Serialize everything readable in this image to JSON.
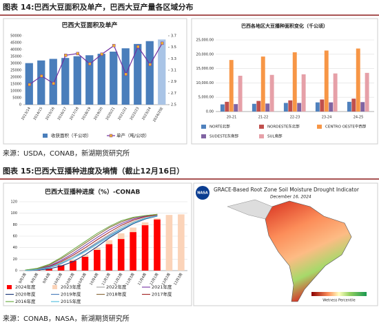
{
  "figure_14": {
    "caption": "图表 14:巴西大豆面积及单产，巴西大豆产量各区域分布",
    "source": "来源：USDA，CONAB，新湖期货研究所"
  },
  "figure_15": {
    "caption": "图表 15:巴西大豆播种进度及墒情（截止12月16日）",
    "source": "来源：CONAB，NASA，新湖期货研究所",
    "map": {
      "logo": "NASA",
      "title": "GRACE-Based Root Zone Soil Moisture Drought Indicator",
      "date": "December 16, 2024",
      "legend_label": "Wetness Percentile"
    }
  },
  "chart_data": [
    {
      "type": "bar_line",
      "title": "巴西大豆面积及单产",
      "bar_mode": "group",
      "categories": [
        "2013/14",
        "2014/15",
        "2015/16",
        "2016/17",
        "2017/18",
        "2018/19",
        "2019/20",
        "2020/21",
        "2021/22",
        "2022/23",
        "2023/24",
        "2024/25E"
      ],
      "series": [
        {
          "name": "收获面积（千公顷）",
          "type": "bar",
          "color": "#4a7ebb",
          "colors": {
            "11": "#a9c4e6"
          },
          "values": [
            30173,
            32093,
            33252,
            33909,
            35149,
            35874,
            36950,
            38502,
            40921,
            44075,
            46134,
            47340
          ]
        },
        {
          "name": "单产（吨/公顷）",
          "type": "line",
          "axis": "y2",
          "color": "#7030a0",
          "marker_color": "#f0b030",
          "values": [
            2.85,
            3.0,
            2.87,
            3.36,
            3.39,
            3.21,
            3.38,
            3.53,
            3.03,
            3.51,
            3.2,
            3.57
          ]
        }
      ],
      "ylim": [
        0,
        50000
      ],
      "yticks": [
        0,
        5000,
        10000,
        15000,
        20000,
        25000,
        30000,
        35000,
        40000,
        45000,
        50000
      ],
      "y2lim": [
        2.5,
        3.7
      ],
      "y2ticks": [
        2.5,
        2.7,
        2.9,
        3.1,
        3.3,
        3.5,
        3.7
      ],
      "grid": false
    },
    {
      "type": "bar",
      "title": "巴西各地区大豆播种面积变化（千公顷）",
      "bar_mode": "group",
      "categories": [
        "20-21",
        "21-22",
        "22-23",
        "23-24",
        "24-25"
      ],
      "series": [
        {
          "name": "NORTE北部",
          "type": "bar",
          "color": "#4f81bd",
          "values": [
            2500,
            2700,
            3000,
            3200,
            3400
          ]
        },
        {
          "name": "NORDESTE东北部",
          "type": "bar",
          "color": "#c0504d",
          "values": [
            3400,
            3700,
            3900,
            4200,
            4500
          ]
        },
        {
          "name": "CENTRO OESTE中西部",
          "type": "bar",
          "color": "#f79646",
          "values": [
            18000,
            19200,
            20700,
            21300,
            22000
          ]
        },
        {
          "name": "SUDESTE东南部",
          "type": "bar",
          "color": "#8064a2",
          "values": [
            2600,
            2800,
            3000,
            3200,
            3300
          ]
        },
        {
          "name": "SUL南部",
          "type": "bar",
          "color": "#e6a0a8",
          "values": [
            12500,
            12800,
            13000,
            13300,
            13500
          ]
        }
      ],
      "ylim": [
        0,
        25000
      ],
      "yticks": [
        {
          "value": 0,
          "label": "0.00"
        },
        {
          "value": 5000,
          "label": "5,000.00"
        },
        {
          "value": 10000,
          "label": "10,000.00"
        },
        {
          "value": 15000,
          "label": "15,000.00"
        },
        {
          "value": 20000,
          "label": "20,000.00"
        },
        {
          "value": 25000,
          "label": "25,000.00"
        }
      ],
      "grid": true
    },
    {
      "type": "bar_line",
      "title": "巴西大豆播种进度（%）-CONAB",
      "bar_mode": "overlap",
      "categories": [
        "9月2周",
        "9月3周",
        "9月4周",
        "10月1周",
        "10月2周",
        "10月3周",
        "10月4周",
        "11月1周",
        "11月2周",
        "11月3周",
        "11月4周",
        "12月1周",
        "12月2周",
        "12月3周"
      ],
      "series": [
        {
          "name": "2024年度",
          "type": "bar",
          "color": "#ff0000",
          "values": [
            0,
            1,
            3,
            9,
            17,
            24,
            36,
            46,
            55,
            67,
            79,
            89,
            null,
            null
          ]
        },
        {
          "name": "2023年度",
          "type": "bar",
          "color": "#fbd3b8",
          "values": [
            0,
            1,
            4,
            10,
            19,
            28,
            40,
            53,
            65,
            75,
            84,
            91,
            97,
            98
          ]
        },
        {
          "name": "2022年度",
          "type": "line",
          "color": "#a6a6a6",
          "values": [
            0,
            2,
            6,
            14,
            24,
            36,
            50,
            63,
            76,
            85,
            92,
            96,
            null,
            null
          ]
        },
        {
          "name": "2021年度",
          "type": "line",
          "color": "#7e3fa8",
          "values": [
            1,
            3,
            8,
            18,
            30,
            44,
            58,
            71,
            82,
            90,
            95,
            97,
            null,
            null
          ]
        },
        {
          "name": "2020年度",
          "type": "line",
          "color": "#1f3a7a",
          "values": [
            0,
            1,
            3,
            8,
            16,
            28,
            42,
            57,
            70,
            82,
            90,
            95,
            null,
            null
          ]
        },
        {
          "name": "2019年度",
          "type": "line",
          "color": "#4f81bd",
          "values": [
            0,
            1,
            5,
            12,
            22,
            35,
            48,
            61,
            73,
            83,
            91,
            95,
            null,
            null
          ]
        },
        {
          "name": "2018年度",
          "type": "line",
          "color": "#8c6d3f",
          "values": [
            1,
            3,
            10,
            21,
            34,
            48,
            62,
            75,
            85,
            92,
            96,
            98,
            null,
            null
          ]
        },
        {
          "name": "2017年度",
          "type": "line",
          "color": "#a52a2a",
          "values": [
            0,
            2,
            7,
            16,
            27,
            40,
            54,
            67,
            79,
            88,
            94,
            97,
            null,
            null
          ]
        },
        {
          "name": "2016年度",
          "type": "line",
          "color": "#70ad47",
          "values": [
            1,
            4,
            11,
            23,
            37,
            51,
            65,
            77,
            87,
            93,
            96,
            98,
            null,
            null
          ]
        },
        {
          "name": "2015年度",
          "type": "line",
          "color": "#5bc0de",
          "values": [
            0,
            2,
            6,
            13,
            22,
            33,
            46,
            59,
            72,
            83,
            91,
            96,
            null,
            null
          ]
        }
      ],
      "ylim": [
        0,
        120
      ],
      "yticks": [
        0,
        20,
        40,
        60,
        80,
        100,
        120
      ],
      "grid": true
    }
  ]
}
